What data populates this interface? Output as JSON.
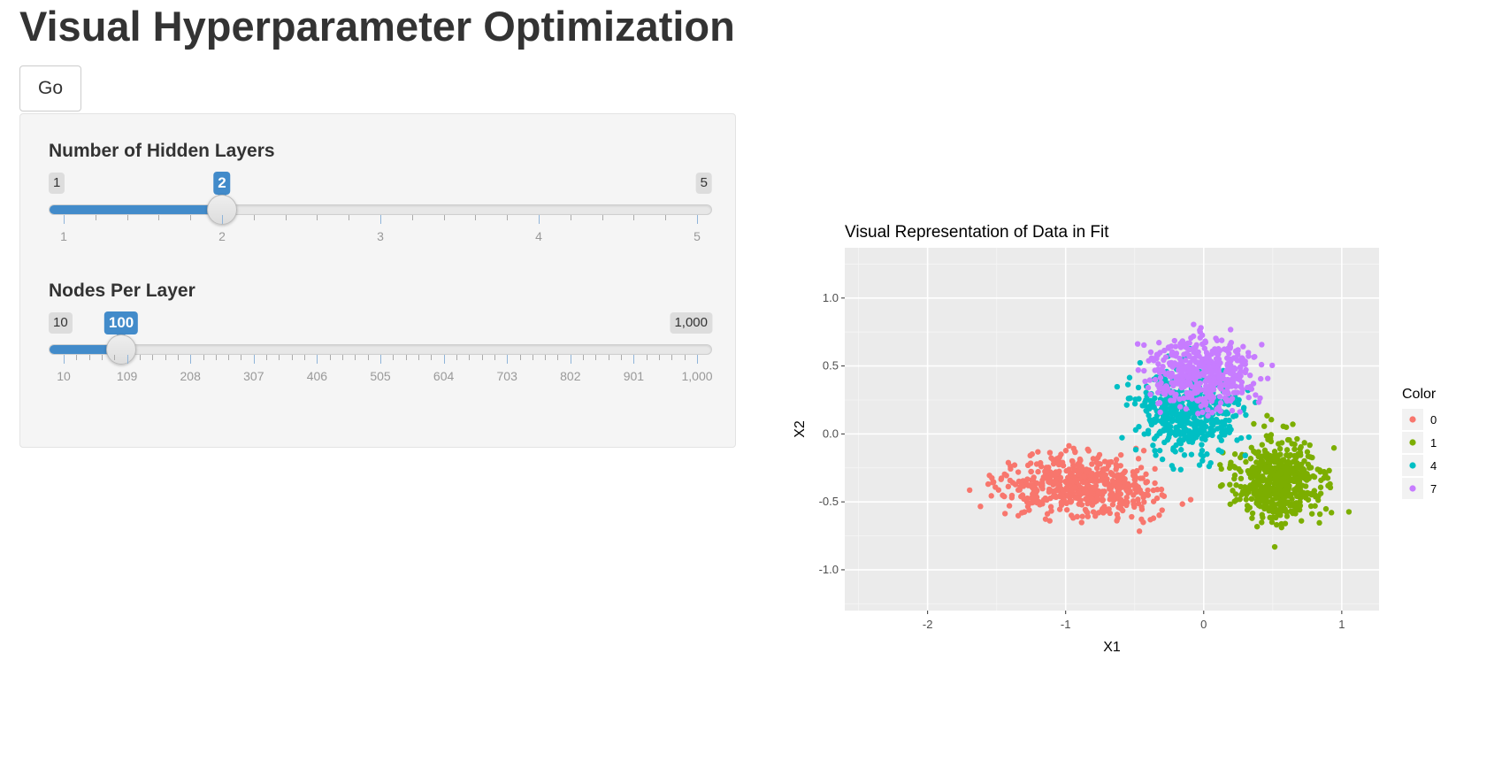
{
  "page": {
    "title": "Visual Hyperparameter Optimization",
    "go_label": "Go"
  },
  "sliders": [
    {
      "label": "Number of Hidden Layers",
      "min": 1,
      "max": 5,
      "value": 2,
      "min_label": "1",
      "max_label": "5",
      "value_label": "2",
      "tick_labels": [
        "1",
        "2",
        "3",
        "4",
        "5"
      ]
    },
    {
      "label": "Nodes Per Layer",
      "min": 10,
      "max": 1000,
      "value": 100,
      "min_label": "10",
      "max_label": "1,000",
      "value_label": "100",
      "tick_labels": [
        "10",
        "109",
        "208",
        "307",
        "406",
        "505",
        "604",
        "703",
        "802",
        "901",
        "1,000"
      ]
    }
  ],
  "colors": {
    "accent": "#428bca",
    "panel_background": "#ebebeb",
    "series": [
      "#f8766d",
      "#7cae00",
      "#00bfc4",
      "#c77cff"
    ]
  },
  "chart_data": {
    "type": "scatter",
    "title": "Visual Representation of Data in Fit",
    "xlabel": "X1",
    "ylabel": "X2",
    "xlim": [
      -2.6,
      1.27
    ],
    "ylim": [
      -1.3,
      1.37
    ],
    "x_ticks": [
      -2,
      -1,
      0,
      1
    ],
    "x_tick_labels": [
      "-2",
      "-1",
      "0",
      "1"
    ],
    "y_ticks": [
      -1.0,
      -0.5,
      0.0,
      0.5,
      1.0
    ],
    "y_tick_labels": [
      "-1.0",
      "-0.5",
      "0.0",
      "0.5",
      "1.0"
    ],
    "grid": true,
    "legend": {
      "title": "Color",
      "placement": "right"
    },
    "series": [
      {
        "name": "0",
        "color": "#f8766d",
        "cluster": {
          "center": [
            -0.9,
            -0.38
          ],
          "spread": [
            0.55,
            0.2
          ],
          "count": 560
        }
      },
      {
        "name": "1",
        "color": "#7cae00",
        "cluster": {
          "center": [
            0.55,
            -0.35
          ],
          "spread": [
            0.3,
            0.3
          ],
          "count": 520
        }
      },
      {
        "name": "4",
        "color": "#00bfc4",
        "cluster": {
          "center": [
            -0.1,
            0.15
          ],
          "spread": [
            0.35,
            0.28
          ],
          "count": 480
        }
      },
      {
        "name": "7",
        "color": "#c77cff",
        "cluster": {
          "center": [
            0.0,
            0.45
          ],
          "spread": [
            0.35,
            0.25
          ],
          "count": 460
        }
      }
    ]
  }
}
